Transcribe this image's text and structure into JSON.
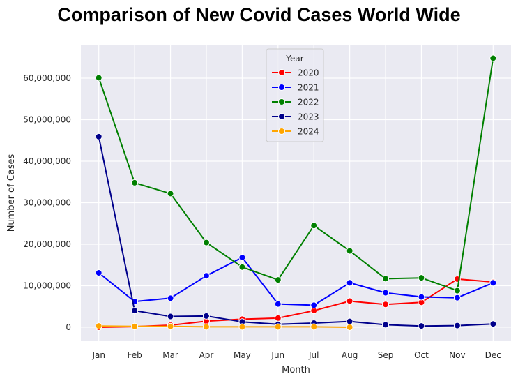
{
  "chart_data": {
    "type": "line",
    "title": "Comparison of New Covid Cases World Wide",
    "xlabel": "Month",
    "ylabel": "Number of Cases",
    "categories": [
      "Jan",
      "Feb",
      "Mar",
      "Apr",
      "May",
      "Jun",
      "Jul",
      "Aug",
      "Sep",
      "Oct",
      "Nov",
      "Dec"
    ],
    "yticks": [
      0,
      10000000,
      20000000,
      30000000,
      40000000,
      50000000,
      60000000
    ],
    "ytick_labels": [
      "0",
      "10,000,000",
      "20,000,000",
      "30,000,000",
      "40,000,000",
      "50,000,000",
      "60,000,000"
    ],
    "ylim": [
      -3200000,
      67900000
    ],
    "grid": true,
    "legend": {
      "title": "Year",
      "placement": "top-center"
    },
    "series": [
      {
        "name": "2020",
        "color": "#ff0000",
        "values": [
          0,
          150000,
          500000,
          1450000,
          1950000,
          2200000,
          4000000,
          6300000,
          5500000,
          6000000,
          11600000,
          10900000
        ]
      },
      {
        "name": "2021",
        "color": "#0000ff",
        "values": [
          13100000,
          6200000,
          7000000,
          12400000,
          16800000,
          5600000,
          5300000,
          10700000,
          8300000,
          7300000,
          7100000,
          10700000
        ]
      },
      {
        "name": "2022",
        "color": "#008000",
        "values": [
          60100000,
          34800000,
          32200000,
          20400000,
          14500000,
          11400000,
          24500000,
          18400000,
          11700000,
          11900000,
          8800000,
          64800000
        ]
      },
      {
        "name": "2023",
        "color": "#00008b",
        "values": [
          45900000,
          4000000,
          2600000,
          2700000,
          1300000,
          700000,
          1000000,
          1400000,
          600000,
          300000,
          400000,
          800000
        ]
      },
      {
        "name": "2024",
        "color": "#ffa500",
        "values": [
          300000,
          200000,
          200000,
          100000,
          100000,
          100000,
          100000,
          0,
          null,
          null,
          null,
          null
        ]
      }
    ]
  }
}
